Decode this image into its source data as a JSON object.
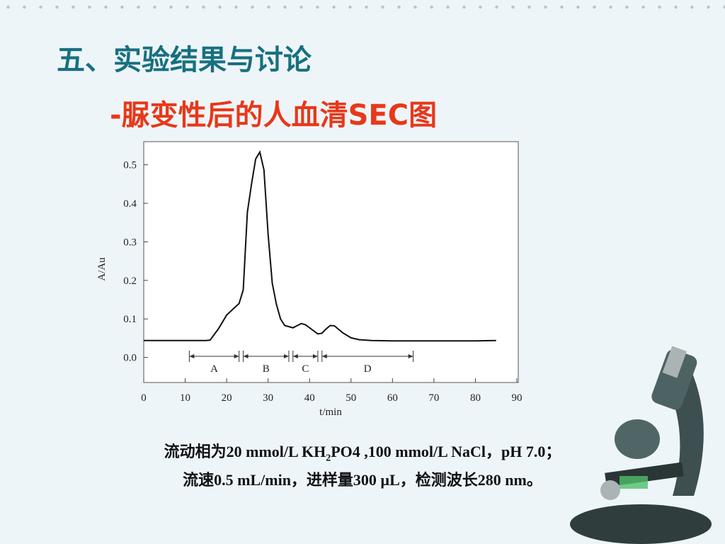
{
  "slide": {
    "title": "五、实验结果与讨论",
    "subtitle": "-脲变性后的人血清SEC图",
    "caption": [
      [
        "流动相为20 mmol/L KH",
        "2",
        "PO4 ,100 mmol/L NaCl，pH 7.0；"
      ],
      [
        "流速0.5 mL/min，进样量300 µL，检测波长280 nm。"
      ]
    ]
  },
  "chart_data": {
    "type": "line",
    "x_label": "t/min",
    "y_label": "A/Au",
    "color": "#111111",
    "x": [
      0,
      5,
      10,
      15,
      16,
      18,
      20,
      22,
      23,
      24,
      25,
      26,
      27,
      28,
      29,
      30,
      31,
      32,
      33,
      34,
      36,
      38,
      39,
      40,
      42,
      43,
      44,
      45,
      46,
      48,
      50,
      52,
      55,
      60,
      70,
      80,
      85
    ],
    "values": [
      0.044,
      0.044,
      0.044,
      0.044,
      0.045,
      0.074,
      0.11,
      0.13,
      0.14,
      0.175,
      0.377,
      0.45,
      0.515,
      0.533,
      0.487,
      0.32,
      0.193,
      0.138,
      0.1,
      0.083,
      0.077,
      0.088,
      0.085,
      0.077,
      0.061,
      0.063,
      0.074,
      0.083,
      0.082,
      0.064,
      0.051,
      0.046,
      0.044,
      0.043,
      0.043,
      0.043,
      0.044
    ],
    "xlim": [
      0,
      90
    ],
    "ylim": [
      -0.065,
      0.56
    ],
    "xticks": [
      0,
      10,
      20,
      30,
      40,
      50,
      60,
      70,
      80,
      90
    ],
    "yticks": [
      {
        "value": 0,
        "label": "0.0"
      },
      0.1,
      0.2,
      0.3,
      0.4,
      0.5
    ],
    "regions": [
      {
        "label": "A",
        "start": 11,
        "end": 23
      },
      {
        "label": "B",
        "start": 24,
        "end": 35
      },
      {
        "label": "C",
        "start": 36,
        "end": 42
      },
      {
        "label": "D",
        "start": 43,
        "end": 65
      }
    ]
  }
}
